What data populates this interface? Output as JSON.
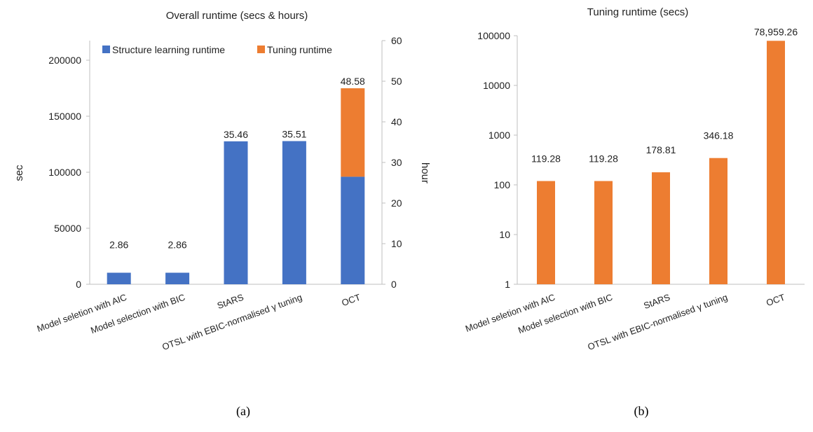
{
  "captions": [
    "(a)",
    "(b)"
  ],
  "colors": {
    "structure": "#4472C4",
    "tuning": "#ED7D31",
    "axis": "#BFBFBF"
  },
  "chart_data": [
    {
      "type": "bar",
      "stacked": true,
      "title": "Overall runtime (secs & hours)",
      "ylabel": "sec",
      "y2label": "hour",
      "ylim": [
        0,
        200000
      ],
      "y2lim": [
        0,
        60
      ],
      "yticks": [
        "0",
        "50000",
        "100000",
        "150000",
        "200000"
      ],
      "y2ticks": [
        "0",
        "10",
        "20",
        "30",
        "40",
        "50",
        "60"
      ],
      "categories": [
        "Model seletion with AIC",
        "Model selection with BIC",
        "StARS",
        "OTSL with EBIC-normalised γ tuning",
        "OCT"
      ],
      "series": [
        {
          "name": "Structure learning runtime",
          "values": [
            10300,
            10300,
            127600,
            127800,
            96000
          ]
        },
        {
          "name": "Tuning runtime",
          "values": [
            0,
            0,
            0,
            0,
            78959
          ]
        }
      ],
      "data_labels": [
        "2.86",
        "2.86",
        "35.46",
        "35.51",
        "48.58"
      ],
      "legend": "top",
      "grid": false
    },
    {
      "type": "bar",
      "title": "Tuning runtime (secs)",
      "yscale": "log",
      "ylim": [
        1,
        100000
      ],
      "yticks": [
        "1",
        "10",
        "100",
        "1000",
        "10000",
        "100000"
      ],
      "categories": [
        "Model seletion with AIC",
        "Model selection with BIC",
        "StARS",
        "OTSL with EBIC-normalised γ tuning",
        "OCT"
      ],
      "series": [
        {
          "name": "",
          "values": [
            119.28,
            119.28,
            178.81,
            346.18,
            78959.26
          ]
        }
      ],
      "data_labels": [
        "119.28",
        "119.28",
        "178.81",
        "346.18",
        "78,959.26"
      ],
      "grid": false
    }
  ]
}
